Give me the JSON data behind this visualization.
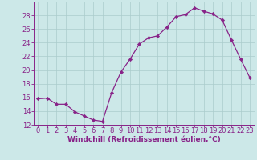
{
  "x": [
    0,
    1,
    2,
    3,
    4,
    5,
    6,
    7,
    8,
    9,
    10,
    11,
    12,
    13,
    14,
    15,
    16,
    17,
    18,
    19,
    20,
    21,
    22,
    23
  ],
  "y": [
    15.8,
    15.9,
    15.0,
    15.0,
    13.9,
    13.3,
    12.7,
    12.5,
    16.7,
    19.7,
    21.6,
    23.8,
    24.7,
    25.0,
    26.3,
    27.8,
    28.1,
    29.1,
    28.6,
    28.2,
    27.3,
    24.4,
    21.6,
    18.9
  ],
  "line_color": "#882288",
  "marker": "D",
  "marker_size": 2.2,
  "xlabel": "Windchill (Refroidissement éolien,°C)",
  "xlim": [
    -0.5,
    23.5
  ],
  "ylim": [
    12,
    30
  ],
  "yticks": [
    12,
    14,
    16,
    18,
    20,
    22,
    24,
    26,
    28
  ],
  "xticks": [
    0,
    1,
    2,
    3,
    4,
    5,
    6,
    7,
    8,
    9,
    10,
    11,
    12,
    13,
    14,
    15,
    16,
    17,
    18,
    19,
    20,
    21,
    22,
    23
  ],
  "bg_color": "#cce8e8",
  "grid_color": "#aacccc",
  "axis_color": "#882288",
  "tick_color": "#882288",
  "label_color": "#882288",
  "font_size_xlabel": 6.5,
  "font_size_ticks": 6.0
}
